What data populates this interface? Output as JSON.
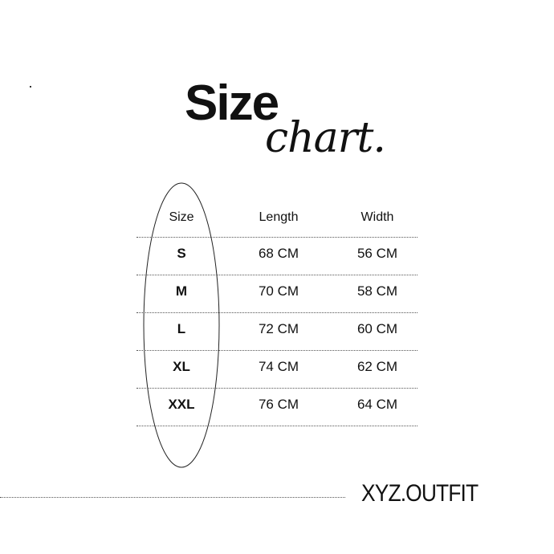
{
  "title": {
    "main": "Size",
    "sub": "chart."
  },
  "table": {
    "headers": [
      "Size",
      "Length",
      "Width"
    ],
    "rows": [
      [
        "S",
        "68 CM",
        "56 CM"
      ],
      [
        "M",
        "70 CM",
        "58 CM"
      ],
      [
        "L",
        "72 CM",
        "60 CM"
      ],
      [
        "XL",
        "74 CM",
        "62 CM"
      ],
      [
        "XXL",
        "76 CM",
        "64 CM"
      ]
    ]
  },
  "brand": "XYZ.OUTFIT"
}
